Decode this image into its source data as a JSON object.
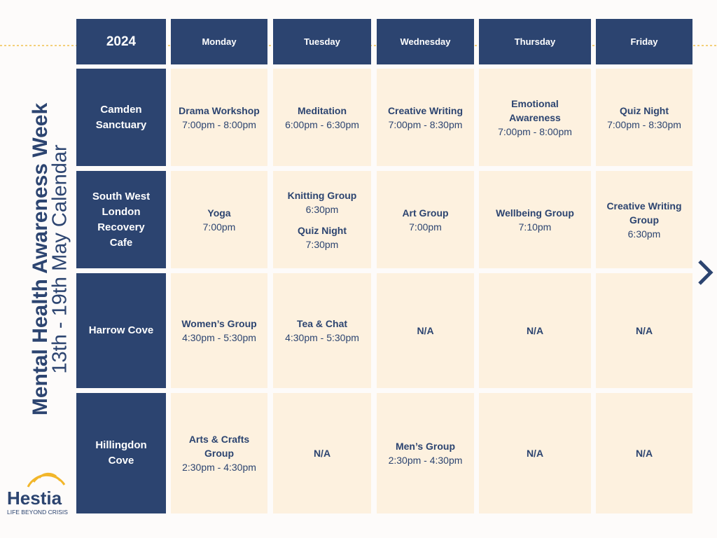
{
  "title": "Mental Health Awareness Week",
  "subtitle": "13th - 19th May Calendar",
  "logo": {
    "name": "Hestia",
    "tagline": "LIFE BEYOND CRISIS"
  },
  "table": {
    "corner": "2024",
    "days": [
      "Monday",
      "Tuesday",
      "Wednesday",
      "Thursday",
      "Friday"
    ],
    "rows": [
      {
        "location": "Camden Sanctuary",
        "cells": [
          [
            {
              "name": "Drama Workshop",
              "time": "7:00pm - 8:00pm"
            }
          ],
          [
            {
              "name": "Meditation",
              "time": "6:00pm - 6:30pm"
            }
          ],
          [
            {
              "name": "Creative Writing",
              "time": "7:00pm - 8:30pm"
            }
          ],
          [
            {
              "name": "Emotional Awareness",
              "time": "7:00pm - 8:00pm"
            }
          ],
          [
            {
              "name": "Quiz Night",
              "time": "7:00pm - 8:30pm"
            }
          ]
        ]
      },
      {
        "location": "South West London Recovery Cafe",
        "cells": [
          [
            {
              "name": "Yoga",
              "time": "7:00pm"
            }
          ],
          [
            {
              "name": "Knitting Group",
              "time": "6:30pm"
            },
            {
              "name": "Quiz Night",
              "time": "7:30pm"
            }
          ],
          [
            {
              "name": "Art Group",
              "time": "7:00pm"
            }
          ],
          [
            {
              "name": "Wellbeing Group",
              "time": "7:10pm"
            }
          ],
          [
            {
              "name": "Creative Writing Group",
              "time": "6:30pm"
            }
          ]
        ]
      },
      {
        "location": "Harrow Cove",
        "cells": [
          [
            {
              "name": "Women’s Group",
              "time": "4:30pm - 5:30pm"
            }
          ],
          [
            {
              "name": "Tea & Chat",
              "time": "4:30pm - 5:30pm"
            }
          ],
          [
            {
              "name": "N/A"
            }
          ],
          [
            {
              "name": "N/A"
            }
          ],
          [
            {
              "name": "N/A"
            }
          ]
        ]
      },
      {
        "location": "Hillingdon Cove",
        "cells": [
          [
            {
              "name": "Arts & Crafts Group",
              "time": "2:30pm - 4:30pm"
            }
          ],
          [
            {
              "name": "N/A"
            }
          ],
          [
            {
              "name": "Men’s Group",
              "time": "2:30pm - 4:30pm"
            }
          ],
          [
            {
              "name": "N/A"
            }
          ],
          [
            {
              "name": "N/A"
            }
          ]
        ]
      }
    ]
  }
}
